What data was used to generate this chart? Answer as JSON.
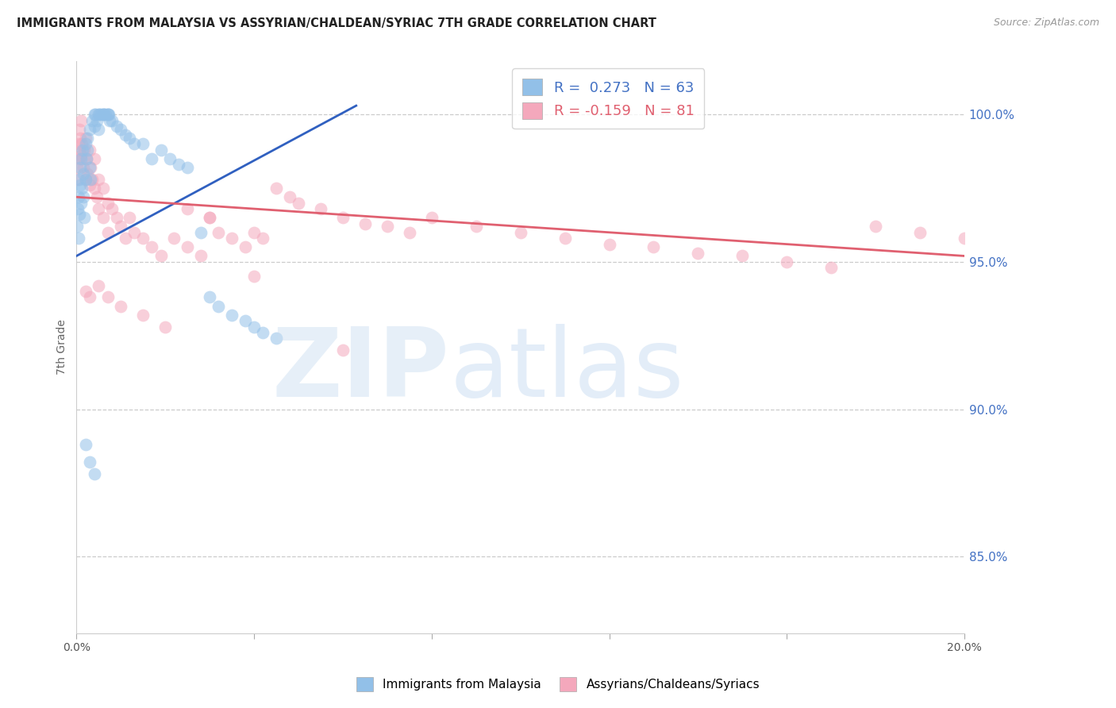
{
  "title": "IMMIGRANTS FROM MALAYSIA VS ASSYRIAN/CHALDEAN/SYRIAC 7TH GRADE CORRELATION CHART",
  "source": "Source: ZipAtlas.com",
  "ylabel": "7th Grade",
  "ylabel_right_labels": [
    "100.0%",
    "95.0%",
    "90.0%",
    "85.0%"
  ],
  "ylabel_right_values": [
    1.0,
    0.95,
    0.9,
    0.85
  ],
  "xmin": 0.0,
  "xmax": 0.2,
  "ymin": 0.824,
  "ymax": 1.018,
  "color_blue": "#92C0E8",
  "color_pink": "#F4A8BC",
  "color_blue_line": "#3060C0",
  "color_pink_line": "#E06070",
  "legend_color_blue": "#4472C4",
  "legend_color_pink": "#E06070",
  "blue_x": [
    0.0002,
    0.0003,
    0.0004,
    0.0005,
    0.0006,
    0.0007,
    0.0008,
    0.0009,
    0.001,
    0.001,
    0.0012,
    0.0013,
    0.0015,
    0.0016,
    0.0018,
    0.002,
    0.002,
    0.0022,
    0.0024,
    0.0025,
    0.003,
    0.003,
    0.0032,
    0.0035,
    0.004,
    0.004,
    0.0042,
    0.0045,
    0.005,
    0.005,
    0.0052,
    0.0055,
    0.006,
    0.006,
    0.0062,
    0.0065,
    0.007,
    0.007,
    0.0072,
    0.0075,
    0.008,
    0.009,
    0.01,
    0.011,
    0.012,
    0.013,
    0.015,
    0.017,
    0.019,
    0.021,
    0.023,
    0.025,
    0.028,
    0.03,
    0.032,
    0.035,
    0.038,
    0.04,
    0.042,
    0.045,
    0.002,
    0.003,
    0.004
  ],
  "blue_y": [
    0.962,
    0.968,
    0.958,
    0.972,
    0.978,
    0.966,
    0.982,
    0.976,
    0.97,
    0.985,
    0.975,
    0.988,
    0.98,
    0.972,
    0.965,
    0.99,
    0.978,
    0.985,
    0.992,
    0.988,
    0.995,
    0.982,
    0.978,
    0.998,
    1.0,
    0.996,
    1.0,
    0.998,
    1.0,
    0.995,
    1.0,
    1.0,
    1.0,
    1.0,
    1.0,
    1.0,
    1.0,
    1.0,
    1.0,
    0.998,
    0.998,
    0.996,
    0.995,
    0.993,
    0.992,
    0.99,
    0.99,
    0.985,
    0.988,
    0.985,
    0.983,
    0.982,
    0.96,
    0.938,
    0.935,
    0.932,
    0.93,
    0.928,
    0.926,
    0.924,
    0.888,
    0.882,
    0.878
  ],
  "pink_x": [
    0.0002,
    0.0003,
    0.0004,
    0.0005,
    0.0006,
    0.0007,
    0.0008,
    0.001,
    0.001,
    0.0012,
    0.0014,
    0.0016,
    0.0018,
    0.002,
    0.002,
    0.0022,
    0.0025,
    0.003,
    0.003,
    0.0032,
    0.0035,
    0.004,
    0.004,
    0.0045,
    0.005,
    0.005,
    0.006,
    0.006,
    0.007,
    0.007,
    0.008,
    0.009,
    0.01,
    0.011,
    0.012,
    0.013,
    0.015,
    0.017,
    0.019,
    0.022,
    0.025,
    0.028,
    0.03,
    0.032,
    0.035,
    0.038,
    0.04,
    0.042,
    0.045,
    0.048,
    0.05,
    0.055,
    0.06,
    0.065,
    0.07,
    0.075,
    0.08,
    0.09,
    0.1,
    0.11,
    0.12,
    0.13,
    0.14,
    0.15,
    0.16,
    0.17,
    0.18,
    0.19,
    0.2,
    0.002,
    0.003,
    0.005,
    0.007,
    0.01,
    0.015,
    0.02,
    0.025,
    0.03,
    0.04,
    0.06
  ],
  "pink_y": [
    0.982,
    0.978,
    0.985,
    0.99,
    0.988,
    0.995,
    0.992,
    0.998,
    0.986,
    0.99,
    0.985,
    0.982,
    0.988,
    0.978,
    0.992,
    0.985,
    0.98,
    0.976,
    0.988,
    0.982,
    0.978,
    0.975,
    0.985,
    0.972,
    0.978,
    0.968,
    0.975,
    0.965,
    0.97,
    0.96,
    0.968,
    0.965,
    0.962,
    0.958,
    0.965,
    0.96,
    0.958,
    0.955,
    0.952,
    0.958,
    0.955,
    0.952,
    0.965,
    0.96,
    0.958,
    0.955,
    0.96,
    0.958,
    0.975,
    0.972,
    0.97,
    0.968,
    0.965,
    0.963,
    0.962,
    0.96,
    0.965,
    0.962,
    0.96,
    0.958,
    0.956,
    0.955,
    0.953,
    0.952,
    0.95,
    0.948,
    0.962,
    0.96,
    0.958,
    0.94,
    0.938,
    0.942,
    0.938,
    0.935,
    0.932,
    0.928,
    0.968,
    0.965,
    0.945,
    0.92
  ],
  "blue_trend_x": [
    0.0,
    0.063
  ],
  "blue_trend_y": [
    0.952,
    1.003
  ],
  "pink_trend_x": [
    0.0,
    0.2
  ],
  "pink_trend_y": [
    0.972,
    0.952
  ]
}
